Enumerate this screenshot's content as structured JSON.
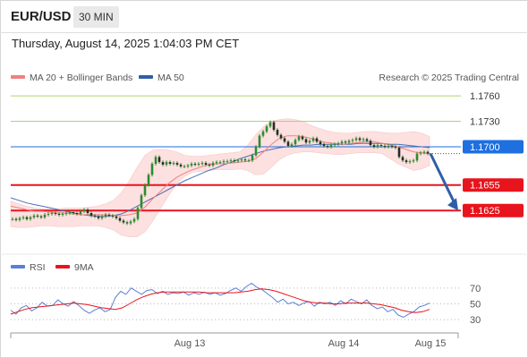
{
  "header": {
    "symbol": "EUR/USD",
    "interval": "30 MIN",
    "datetime": "Thursday, August 14, 2025 1:04:03 PM CET"
  },
  "legend": {
    "ma20_bb": "MA 20 + Bollinger Bands",
    "ma50": "MA 50",
    "credit": "Research © 2025 Trading Central",
    "rsi": "RSI",
    "ma9": "9MA"
  },
  "colors": {
    "candle": "#2e8b2e",
    "bollinger_fill": "#fde0e0",
    "ma20": "#f08080",
    "ma50": "#4a6fb5",
    "resistance": "#a6d96a",
    "support": "#e8141d",
    "pivot": "#1e6fe0",
    "rsi": "#5b7fd6",
    "rsi_ma": "#e8141d",
    "arrow": "#2f5ea8"
  },
  "chart_data": [
    {
      "type": "line",
      "title": "EUR/USD 30 MIN",
      "x_tick_labels": [
        "Aug 13",
        "Aug 14",
        "Aug 15"
      ],
      "ylim": [
        1.1582,
        1.1778
      ],
      "levels": [
        {
          "label": "1.1760",
          "value": 1.176,
          "kind": "resistance"
        },
        {
          "label": "1.1730",
          "value": 1.173,
          "kind": "resistance"
        },
        {
          "label": "1.1700",
          "value": 1.17,
          "kind": "pivot"
        },
        {
          "label": "1.1655",
          "value": 1.1655,
          "kind": "support"
        },
        {
          "label": "1.1625",
          "value": 1.1625,
          "kind": "support"
        }
      ],
      "price_series": [
        1.1615,
        1.1614,
        1.1616,
        1.1617,
        1.1615,
        1.1617,
        1.1619,
        1.1618,
        1.1617,
        1.162,
        1.1621,
        1.1622,
        1.1621,
        1.162,
        1.1621,
        1.1622,
        1.1623,
        1.1622,
        1.1621,
        1.1624,
        1.1626,
        1.1622,
        1.1619,
        1.1618,
        1.1616,
        1.1618,
        1.162,
        1.1619,
        1.1618,
        1.1616,
        1.1613,
        1.1611,
        1.161,
        1.1612,
        1.1615,
        1.1628,
        1.1643,
        1.1655,
        1.1667,
        1.168,
        1.1688,
        1.1682,
        1.1679,
        1.1682,
        1.168,
        1.1681,
        1.1679,
        1.1677,
        1.1677,
        1.1678,
        1.168,
        1.1679,
        1.168,
        1.1681,
        1.1679,
        1.1678,
        1.1681,
        1.1682,
        1.1682,
        1.1683,
        1.1683,
        1.1684,
        1.1683,
        1.1684,
        1.1685,
        1.1684,
        1.1684,
        1.169,
        1.17,
        1.1713,
        1.1718,
        1.1724,
        1.1729,
        1.172,
        1.1714,
        1.171,
        1.1706,
        1.1701,
        1.1703,
        1.1708,
        1.1712,
        1.1709,
        1.1705,
        1.1707,
        1.171,
        1.1706,
        1.1703,
        1.1701,
        1.17,
        1.1702,
        1.1703,
        1.1704,
        1.1706,
        1.1705,
        1.1707,
        1.1708,
        1.171,
        1.1708,
        1.1709,
        1.1707,
        1.1702,
        1.17,
        1.1702,
        1.1701,
        1.17,
        1.1701,
        1.17,
        1.1699,
        1.1688,
        1.1684,
        1.1682,
        1.1683,
        1.1684,
        1.1692,
        1.1693,
        1.1694,
        1.1692
      ],
      "ma20": [
        1.163,
        1.1628,
        1.1626,
        1.1624,
        1.1624,
        1.1623,
        1.1622,
        1.1622,
        1.1621,
        1.162,
        1.162,
        1.162,
        1.162,
        1.1619,
        1.1619,
        1.162,
        1.1622,
        1.1629,
        1.1639,
        1.1648,
        1.1657,
        1.1664,
        1.1669,
        1.1673,
        1.1676,
        1.1679,
        1.168,
        1.168,
        1.1681,
        1.1682,
        1.1683,
        1.1686,
        1.1694,
        1.1703,
        1.171,
        1.1713,
        1.1713,
        1.1712,
        1.171,
        1.1707,
        1.1705,
        1.1704,
        1.1703,
        1.1704,
        1.1705,
        1.1706,
        1.1706,
        1.1704,
        1.1702,
        1.17,
        1.1697,
        1.1694,
        1.1693,
        1.1692
      ],
      "ma50": [
        1.164,
        1.1637,
        1.1634,
        1.1632,
        1.163,
        1.1628,
        1.1626,
        1.1624,
        1.1622,
        1.162,
        1.1619,
        1.1618,
        1.1618,
        1.1619,
        1.1621,
        1.1625,
        1.163,
        1.1635,
        1.164,
        1.1645,
        1.165,
        1.1655,
        1.166,
        1.1664,
        1.1668,
        1.1672,
        1.1675,
        1.1679,
        1.1682,
        1.1686,
        1.1689,
        1.1692,
        1.1695,
        1.1697,
        1.1699,
        1.17,
        1.1701,
        1.1702,
        1.1702,
        1.1703,
        1.1703,
        1.1703,
        1.1703,
        1.1703,
        1.1704,
        1.1704,
        1.1704,
        1.1704,
        1.1703,
        1.1703,
        1.1702,
        1.1701,
        1.17,
        1.1699
      ],
      "bb_upper": [
        1.1636,
        1.1633,
        1.163,
        1.1628,
        1.1627,
        1.1627,
        1.1627,
        1.1628,
        1.1628,
        1.1628,
        1.1629,
        1.163,
        1.1633,
        1.1637,
        1.1646,
        1.166,
        1.1676,
        1.169,
        1.1696,
        1.1697,
        1.1696,
        1.1694,
        1.169,
        1.1689,
        1.1689,
        1.169,
        1.1691,
        1.1692,
        1.1693,
        1.1694,
        1.1702,
        1.1714,
        1.1724,
        1.173,
        1.1732,
        1.1733,
        1.1732,
        1.173,
        1.1725,
        1.1722,
        1.1719,
        1.1717,
        1.1716,
        1.1716,
        1.1717,
        1.1718,
        1.1718,
        1.1717,
        1.1716,
        1.1716,
        1.1717,
        1.1718,
        1.1716,
        1.1712
      ],
      "bb_lower": [
        1.1606,
        1.1605,
        1.1605,
        1.1606,
        1.1607,
        1.1607,
        1.1606,
        1.1606,
        1.1606,
        1.1607,
        1.1607,
        1.1607,
        1.1605,
        1.1602,
        1.1596,
        1.1594,
        1.1594,
        1.16,
        1.1613,
        1.1628,
        1.1643,
        1.1656,
        1.1665,
        1.167,
        1.1671,
        1.1672,
        1.1673,
        1.1673,
        1.1673,
        1.1674,
        1.1672,
        1.1667,
        1.1668,
        1.1676,
        1.1685,
        1.169,
        1.1693,
        1.1694,
        1.1694,
        1.1693,
        1.1692,
        1.1691,
        1.1691,
        1.1692,
        1.1693,
        1.1693,
        1.1693,
        1.1692,
        1.1686,
        1.168,
        1.1676,
        1.1672,
        1.1674,
        1.1678
      ],
      "forecast": {
        "from": 1.1692,
        "to": 1.1625
      }
    },
    {
      "type": "line",
      "title": "RSI",
      "ylim": [
        20,
        80
      ],
      "y_ticks": [
        "70",
        "50",
        "30"
      ],
      "series": [
        {
          "name": "RSI",
          "values": [
            42,
            37,
            45,
            48,
            41,
            45,
            52,
            47,
            48,
            55,
            50,
            47,
            53,
            48,
            42,
            38,
            42,
            45,
            40,
            43,
            58,
            66,
            62,
            70,
            66,
            62,
            67,
            68,
            63,
            66,
            62,
            64,
            63,
            65,
            61,
            64,
            62,
            65,
            62,
            64,
            61,
            63,
            67,
            70,
            66,
            72,
            76,
            71,
            68,
            63,
            58,
            52,
            56,
            50,
            52,
            48,
            51,
            53,
            47,
            52,
            50,
            52,
            48,
            54,
            50,
            56,
            53,
            50,
            55,
            48,
            44,
            46,
            40,
            43,
            36,
            33,
            37,
            40,
            46,
            48,
            51
          ]
        },
        {
          "name": "9MA",
          "values": [
            37,
            40,
            43,
            45,
            46,
            47,
            48,
            49,
            50,
            51,
            50,
            49,
            47,
            45,
            44,
            43,
            45,
            50,
            55,
            59,
            62,
            64,
            65,
            65,
            65,
            65,
            65,
            65,
            64,
            64,
            64,
            64,
            64,
            65,
            66,
            68,
            69,
            68,
            66,
            63,
            60,
            57,
            54,
            52,
            51,
            51,
            50,
            50,
            51,
            51,
            51,
            51,
            50,
            49,
            47,
            45,
            42,
            40,
            39,
            40,
            43
          ]
        }
      ]
    }
  ]
}
